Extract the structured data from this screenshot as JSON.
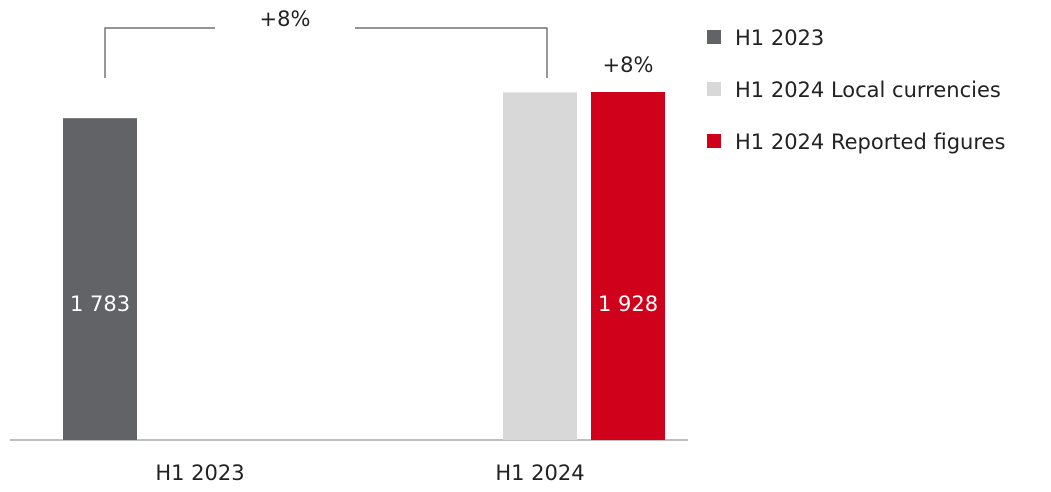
{
  "chart_data": {
    "type": "bar",
    "categories": [
      "H1 2023",
      "H1 2024"
    ],
    "series": [
      {
        "name": "H1 2023",
        "color": "#626366",
        "values": [
          1783,
          null
        ],
        "value_labels": [
          "1 783",
          null
        ]
      },
      {
        "name": "H1 2024 Local currencies",
        "color": "#d8d8d9",
        "values": [
          null,
          1926
        ],
        "value_labels": [
          null,
          null
        ]
      },
      {
        "name": "H1 2024 Reported figures",
        "color": "#d0021b",
        "values": [
          null,
          1928
        ],
        "value_labels": [
          null,
          "1 928"
        ]
      }
    ],
    "annotations": [
      "+8%",
      "+8%"
    ]
  }
}
